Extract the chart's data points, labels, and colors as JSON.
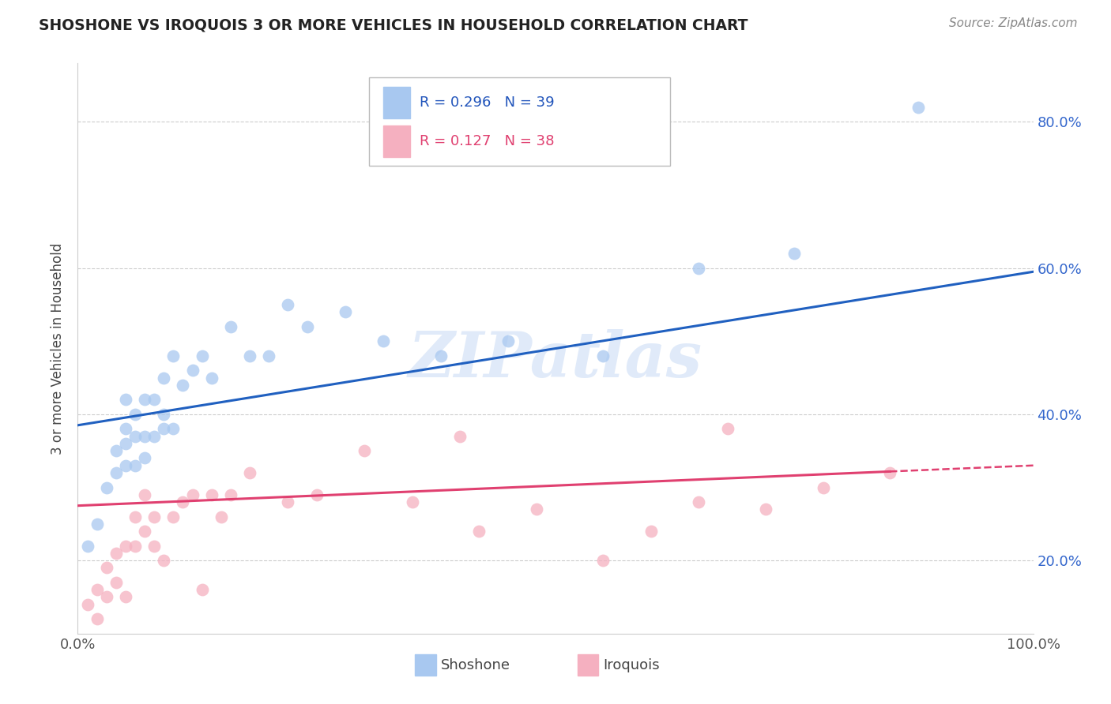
{
  "title": "SHOSHONE VS IROQUOIS 3 OR MORE VEHICLES IN HOUSEHOLD CORRELATION CHART",
  "source": "Source: ZipAtlas.com",
  "ylabel": "3 or more Vehicles in Household",
  "xlim": [
    0,
    100
  ],
  "ylim": [
    10,
    88
  ],
  "y_tick_values": [
    20,
    40,
    60,
    80
  ],
  "legend_r": [
    "R = 0.296",
    "R = 0.127"
  ],
  "legend_n": [
    "N = 39",
    "N = 38"
  ],
  "shoshone_color": "#a8c8f0",
  "iroquois_color": "#f5b0c0",
  "shoshone_line_color": "#2060c0",
  "iroquois_line_color": "#e04070",
  "watermark": "ZIPatlas",
  "shoshone_x": [
    1,
    2,
    3,
    4,
    4,
    5,
    5,
    5,
    5,
    6,
    6,
    6,
    7,
    7,
    7,
    8,
    8,
    9,
    9,
    9,
    10,
    10,
    11,
    12,
    13,
    14,
    16,
    18,
    20,
    22,
    24,
    28,
    32,
    38,
    45,
    55,
    65,
    75,
    88
  ],
  "shoshone_y": [
    22,
    25,
    30,
    32,
    35,
    33,
    36,
    38,
    42,
    33,
    37,
    40,
    34,
    37,
    42,
    37,
    42,
    38,
    40,
    45,
    38,
    48,
    44,
    46,
    48,
    45,
    52,
    48,
    48,
    55,
    52,
    54,
    50,
    48,
    50,
    48,
    60,
    62,
    82
  ],
  "iroquois_x": [
    1,
    2,
    2,
    3,
    3,
    4,
    4,
    5,
    5,
    6,
    6,
    7,
    7,
    8,
    8,
    9,
    10,
    11,
    12,
    13,
    14,
    15,
    16,
    18,
    22,
    25,
    30,
    35,
    40,
    42,
    48,
    55,
    60,
    65,
    68,
    72,
    78,
    85
  ],
  "iroquois_y": [
    14,
    12,
    16,
    15,
    19,
    17,
    21,
    15,
    22,
    22,
    26,
    24,
    29,
    22,
    26,
    20,
    26,
    28,
    29,
    16,
    29,
    26,
    29,
    32,
    28,
    29,
    35,
    28,
    37,
    24,
    27,
    20,
    24,
    28,
    38,
    27,
    30,
    32
  ],
  "shoshone_line_x0": 0,
  "shoshone_line_y0": 38.5,
  "shoshone_line_x1": 100,
  "shoshone_line_y1": 59.5,
  "iroquois_line_x0": 0,
  "iroquois_line_y0": 27.5,
  "iroquois_line_x1": 100,
  "iroquois_line_y1": 33.0,
  "iroquois_solid_end_x": 85
}
